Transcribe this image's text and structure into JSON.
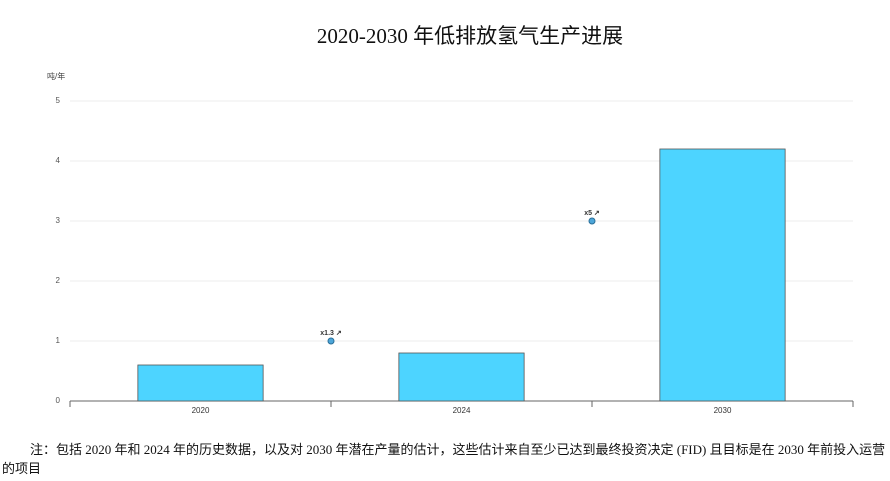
{
  "chart_data": {
    "type": "bar",
    "title": "2020-2030 年低排放氢气生产进展",
    "y_unit": "吨/年",
    "categories": [
      "2020",
      "2024",
      "2030"
    ],
    "values": [
      0.6,
      0.8,
      4.2
    ],
    "color": "#4dd4ff",
    "ylim": [
      0,
      5
    ],
    "yticks": [
      0,
      1,
      2,
      3,
      4,
      5
    ],
    "grid": true,
    "annotations": [
      {
        "label": "x1.3 ↗",
        "value": 1
      },
      {
        "label": "x5 ↗",
        "value": 3
      }
    ],
    "note": "注：包括 2020 年和 2024 年的历史数据，以及对 2030 年潜在产量的估计，这些估计来自至少已达到最终投资决定 (FID) 且目标是在 2030 年前投入运营的项目"
  }
}
